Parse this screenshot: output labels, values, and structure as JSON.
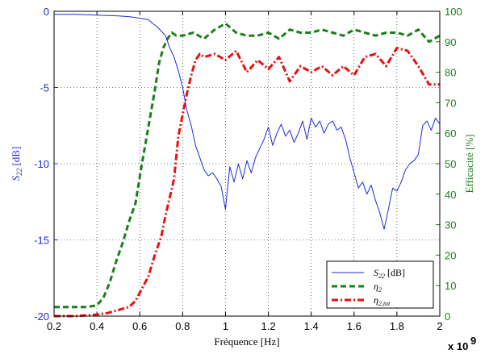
{
  "chart_data": {
    "type": "line",
    "title": "",
    "xlabel": "Fréquence [Hz]",
    "x_multiplier": "x 10",
    "x_multiplier_exp": "9",
    "ylabel_left_main": "S",
    "ylabel_left_sub": "22",
    "ylabel_left_unit": " [dB]",
    "ylabel_right": "Efficacité [%]",
    "xlim": [
      0.2,
      2.0
    ],
    "ylim_left": [
      -20,
      0
    ],
    "ylim_right": [
      0,
      100
    ],
    "x_ticks": [
      "0.2",
      "0.4",
      "0.6",
      "0.8",
      "1",
      "1.2",
      "1.4",
      "1.6",
      "1.8",
      "2"
    ],
    "y_left_ticks": [
      "0",
      "-5",
      "-10",
      "-15",
      "-20"
    ],
    "y_right_ticks": [
      "0",
      "10",
      "20",
      "30",
      "40",
      "50",
      "60",
      "70",
      "80",
      "90",
      "100"
    ],
    "grid": true,
    "legend_position": "bottom-right",
    "colors": {
      "s22": "#1f2bd6",
      "eta2": "#1a7f1a",
      "eta2tot": "#e81010",
      "left_axis": "#1f2bd6",
      "right_axis": "#1a7f1a"
    },
    "series": [
      {
        "name": "S22 [dB]",
        "legend_main": "S",
        "legend_sub": "22",
        "legend_unit": " [dB]",
        "axis": "left",
        "style": "solid",
        "x": [
          0.2,
          0.3,
          0.4,
          0.5,
          0.55,
          0.6,
          0.62,
          0.64,
          0.66,
          0.68,
          0.7,
          0.72,
          0.74,
          0.76,
          0.78,
          0.8,
          0.82,
          0.84,
          0.86,
          0.88,
          0.9,
          0.92,
          0.94,
          0.96,
          0.98,
          1.0,
          1.02,
          1.04,
          1.06,
          1.08,
          1.1,
          1.12,
          1.14,
          1.16,
          1.18,
          1.2,
          1.22,
          1.24,
          1.26,
          1.28,
          1.3,
          1.32,
          1.34,
          1.36,
          1.38,
          1.4,
          1.42,
          1.44,
          1.46,
          1.48,
          1.5,
          1.52,
          1.54,
          1.56,
          1.58,
          1.6,
          1.62,
          1.64,
          1.66,
          1.68,
          1.7,
          1.72,
          1.74,
          1.76,
          1.78,
          1.8,
          1.82,
          1.84,
          1.86,
          1.88,
          1.9,
          1.92,
          1.94,
          1.96,
          1.98,
          2.0
        ],
        "values": [
          -0.2,
          -0.2,
          -0.25,
          -0.3,
          -0.35,
          -0.45,
          -0.5,
          -0.55,
          -0.8,
          -1.0,
          -1.3,
          -1.6,
          -2.4,
          -3.0,
          -3.9,
          -5.0,
          -6.5,
          -7.5,
          -8.8,
          -9.6,
          -10.4,
          -10.8,
          -10.6,
          -11.0,
          -11.5,
          -13.0,
          -10.2,
          -11.2,
          -10.0,
          -11.0,
          -9.8,
          -10.6,
          -9.6,
          -9.0,
          -8.4,
          -7.6,
          -8.8,
          -8.0,
          -7.4,
          -8.2,
          -7.8,
          -8.6,
          -8.0,
          -7.2,
          -8.4,
          -7.0,
          -7.6,
          -7.2,
          -8.0,
          -7.4,
          -7.2,
          -7.8,
          -7.6,
          -8.4,
          -9.6,
          -10.6,
          -11.6,
          -11.2,
          -12.0,
          -11.4,
          -12.4,
          -13.2,
          -14.3,
          -13.0,
          -11.6,
          -11.8,
          -11.2,
          -10.4,
          -10.0,
          -9.8,
          -9.4,
          -7.5,
          -7.2,
          -7.8,
          -7.0,
          -7.4
        ]
      },
      {
        "name": "η2",
        "legend_main": "η",
        "legend_sub": "2",
        "axis": "right",
        "style": "dashed",
        "x": [
          0.2,
          0.25,
          0.3,
          0.35,
          0.4,
          0.43,
          0.46,
          0.49,
          0.52,
          0.55,
          0.58,
          0.61,
          0.63,
          0.65,
          0.67,
          0.69,
          0.71,
          0.73,
          0.75,
          0.77,
          0.8,
          0.85,
          0.9,
          0.95,
          1.0,
          1.05,
          1.1,
          1.15,
          1.2,
          1.25,
          1.3,
          1.35,
          1.4,
          1.45,
          1.5,
          1.55,
          1.6,
          1.65,
          1.7,
          1.75,
          1.8,
          1.85,
          1.9,
          1.95,
          2.0
        ],
        "values": [
          3,
          3,
          3,
          3,
          3.5,
          6,
          11,
          18,
          24,
          31,
          37,
          50,
          58,
          66,
          74,
          83,
          88,
          91,
          93,
          92,
          92,
          93,
          91,
          94,
          96,
          93,
          92,
          92,
          93,
          91,
          94,
          93,
          93,
          94,
          93,
          92,
          94,
          93,
          92,
          93,
          93,
          92,
          94,
          90,
          92
        ]
      },
      {
        "name": "η2,tot",
        "legend_main": "η",
        "legend_sub": "2,tot",
        "axis": "right",
        "style": "dashdot",
        "x": [
          0.2,
          0.3,
          0.4,
          0.45,
          0.5,
          0.55,
          0.58,
          0.61,
          0.64,
          0.67,
          0.7,
          0.72,
          0.74,
          0.76,
          0.78,
          0.8,
          0.82,
          0.84,
          0.86,
          0.88,
          0.9,
          0.95,
          1.0,
          1.05,
          1.1,
          1.15,
          1.2,
          1.25,
          1.3,
          1.35,
          1.4,
          1.45,
          1.5,
          1.55,
          1.6,
          1.65,
          1.7,
          1.75,
          1.8,
          1.85,
          1.9,
          1.95,
          2.0
        ],
        "values": [
          0,
          0,
          0.5,
          1,
          2,
          3,
          5,
          9,
          13,
          20,
          26,
          33,
          39,
          45,
          59,
          66,
          73,
          79,
          84,
          86,
          85,
          86,
          84,
          87,
          80,
          84,
          81,
          85,
          77,
          82,
          80,
          82,
          79,
          82,
          79,
          85,
          86,
          82,
          88,
          87,
          82,
          76,
          76
        ]
      }
    ]
  }
}
